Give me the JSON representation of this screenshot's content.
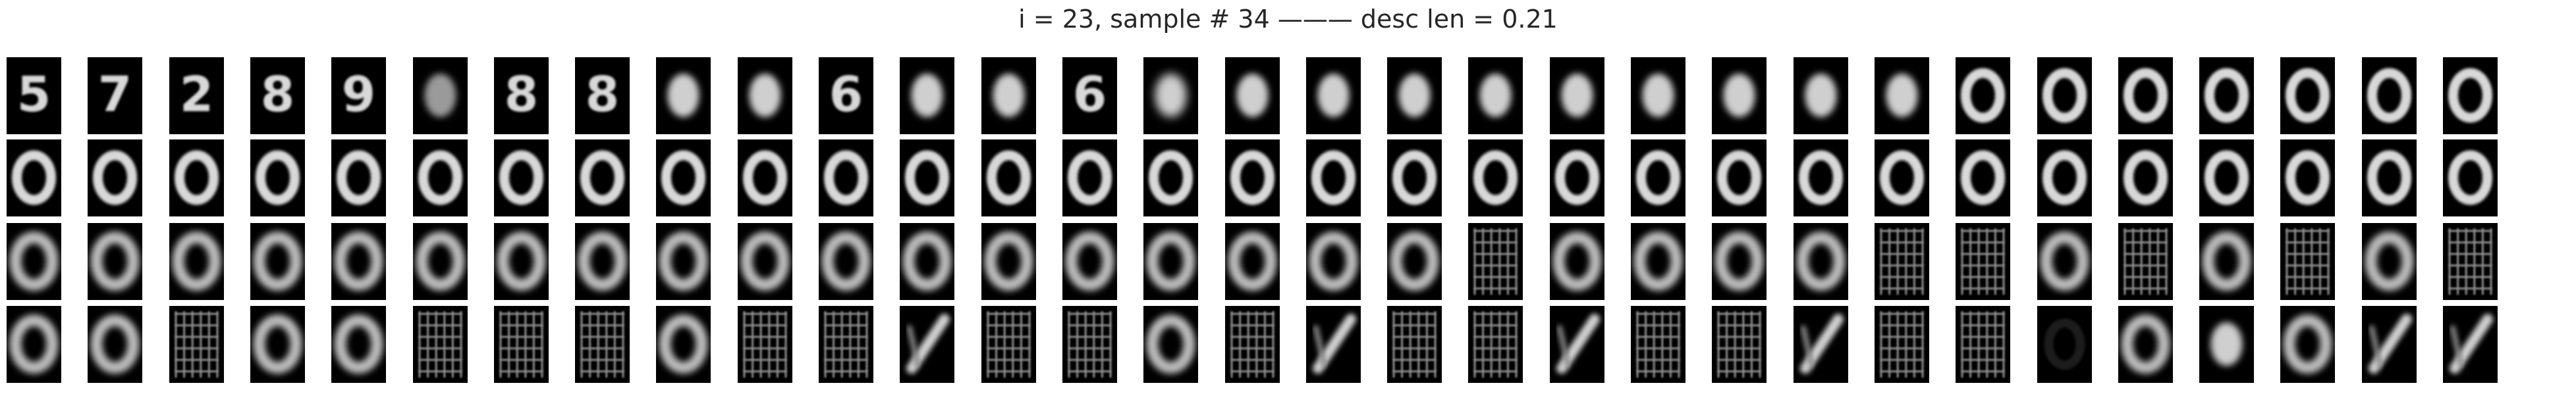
{
  "figure": {
    "title": "i = 23, sample # 34 ——— desc len = 0.21"
  },
  "colors": {
    "background": "#ffffff",
    "tile_background": "#000000",
    "stroke": "#d8d8d8"
  },
  "panels": [
    [
      "digit-5",
      "digit-7",
      "digit-2",
      "digit-8",
      "digit-9",
      "faint-blob",
      "digit-8",
      "digit-8",
      "blob",
      "blob",
      "digit-6",
      "blob",
      "blob",
      "digit-6",
      "noisy-blob",
      "blob",
      "blob",
      "blob",
      "blob",
      "blob",
      "blob",
      "blob",
      "blob",
      "blob",
      "ring",
      "ring",
      "ring",
      "ring",
      "ring",
      "ring",
      "ring"
    ],
    [
      "ring",
      "ring",
      "ring",
      "ring",
      "ring",
      "ring",
      "ring",
      "ring",
      "ring",
      "ring",
      "ring",
      "ring",
      "ring",
      "ring",
      "ring",
      "ring",
      "ring",
      "ring",
      "ring",
      "ring",
      "ring",
      "ring",
      "ring",
      "ring",
      "ring",
      "ring",
      "ring",
      "ring",
      "ring",
      "ring",
      "ring"
    ],
    [
      "blurry-ring",
      "blurry-ring",
      "blurry-ring",
      "blurry-ring",
      "blurry-ring",
      "blurry-ring",
      "blurry-ring",
      "blurry-ring",
      "blurry-ring",
      "blurry-ring",
      "blurry-ring",
      "blurry-ring",
      "blurry-ring",
      "blurry-ring",
      "blurry-ring",
      "blurry-ring",
      "blurry-ring",
      "blurry-ring",
      "grid-noise",
      "blurry-ring",
      "blurry-ring",
      "blurry-ring",
      "blurry-ring",
      "grid-noise",
      "grid-noise",
      "blurry-ring",
      "grid-noise",
      "blurry-ring",
      "grid-noise",
      "blurry-ring",
      "grid-noise"
    ],
    [
      "blurry-ring",
      "blurry-ring",
      "grid-noise",
      "blurry-ring",
      "blurry-ring",
      "grid-noise",
      "grid-noise",
      "grid-noise",
      "blurry-ring",
      "grid-noise",
      "grid-noise",
      "diagonal-stroke",
      "grid-noise",
      "grid-noise",
      "blurry-ring",
      "grid-noise",
      "diagonal-stroke",
      "grid-noise",
      "grid-noise",
      "diagonal-stroke",
      "grid-noise",
      "grid-noise",
      "diagonal-stroke",
      "grid-noise",
      "grid-noise",
      "dark-ring",
      "blurry-ring",
      "blob",
      "blurry-ring",
      "diagonal-stroke",
      "diagonal-stroke"
    ]
  ]
}
